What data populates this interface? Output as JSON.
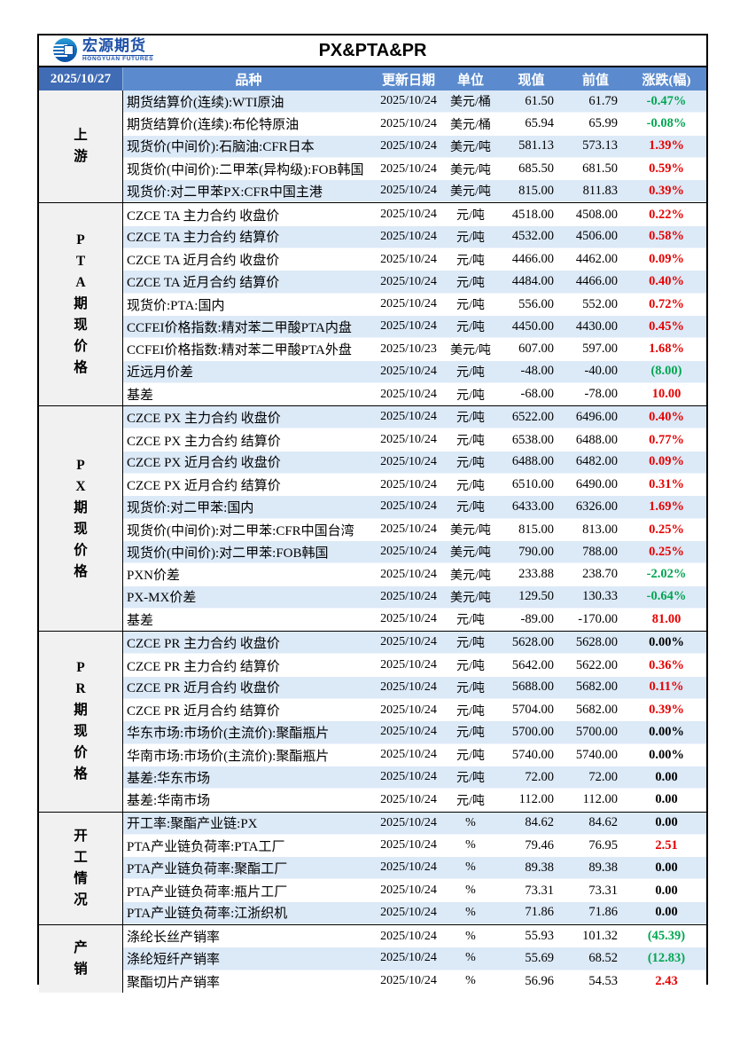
{
  "brand": {
    "name_cn": "宏源期货",
    "name_en": "HONGYUAN FUTURES"
  },
  "report": {
    "title": "PX&PTA&PR",
    "sheet_date": "2025/10/27"
  },
  "colors": {
    "up": "#e60000",
    "down": "#00a651",
    "flat": "#000000",
    "header_bg": "#5b8bce",
    "date_cell_bg": "#3f6cb5",
    "row_alt_blue": "#dce9f7",
    "section_cell_bg": "#f1f1f1",
    "brand_blue": "#1c50a8"
  },
  "table": {
    "columns": [
      "品种",
      "更新日期",
      "单位",
      "现值",
      "前值",
      "涨跌(幅)"
    ],
    "sections": [
      {
        "id": "upstream",
        "label": "上游",
        "label_chars": [
          "上",
          "游"
        ],
        "rows": [
          {
            "name": "期货结算价(连续):WTI原油",
            "date": "2025/10/24",
            "unit": "美元/桶",
            "now": "61.50",
            "prev": "61.79",
            "chg": "-0.47%",
            "trend": "down"
          },
          {
            "name": "期货结算价(连续):布伦特原油",
            "date": "2025/10/24",
            "unit": "美元/桶",
            "now": "65.94",
            "prev": "65.99",
            "chg": "-0.08%",
            "trend": "down"
          },
          {
            "name": "现货价(中间价):石脑油:CFR日本",
            "date": "2025/10/24",
            "unit": "美元/吨",
            "now": "581.13",
            "prev": "573.13",
            "chg": "1.39%",
            "trend": "up"
          },
          {
            "name": "现货价(中间价):二甲苯(异构级):FOB韩国",
            "date": "2025/10/24",
            "unit": "美元/吨",
            "now": "685.50",
            "prev": "681.50",
            "chg": "0.59%",
            "trend": "up"
          },
          {
            "name": "现货价:对二甲苯PX:CFR中国主港",
            "date": "2025/10/24",
            "unit": "美元/吨",
            "now": "815.00",
            "prev": "811.83",
            "chg": "0.39%",
            "trend": "up"
          }
        ]
      },
      {
        "id": "pta-prices",
        "label": "PTA期现价格",
        "label_chars": [
          "P",
          "T",
          "A",
          "期",
          "现",
          "价",
          "格"
        ],
        "rows": [
          {
            "name": "CZCE TA 主力合约 收盘价",
            "date": "2025/10/24",
            "unit": "元/吨",
            "now": "4518.00",
            "prev": "4508.00",
            "chg": "0.22%",
            "trend": "up"
          },
          {
            "name": "CZCE TA 主力合约 结算价",
            "date": "2025/10/24",
            "unit": "元/吨",
            "now": "4532.00",
            "prev": "4506.00",
            "chg": "0.58%",
            "trend": "up"
          },
          {
            "name": "CZCE TA 近月合约 收盘价",
            "date": "2025/10/24",
            "unit": "元/吨",
            "now": "4466.00",
            "prev": "4462.00",
            "chg": "0.09%",
            "trend": "up"
          },
          {
            "name": "CZCE TA 近月合约 结算价",
            "date": "2025/10/24",
            "unit": "元/吨",
            "now": "4484.00",
            "prev": "4466.00",
            "chg": "0.40%",
            "trend": "up"
          },
          {
            "name": "现货价:PTA:国内",
            "date": "2025/10/24",
            "unit": "元/吨",
            "now": "556.00",
            "prev": "552.00",
            "chg": "0.72%",
            "trend": "up"
          },
          {
            "name": "CCFEI价格指数:精对苯二甲酸PTA内盘",
            "date": "2025/10/24",
            "unit": "元/吨",
            "now": "4450.00",
            "prev": "4430.00",
            "chg": "0.45%",
            "trend": "up"
          },
          {
            "name": "CCFEI价格指数:精对苯二甲酸PTA外盘",
            "date": "2025/10/23",
            "unit": "美元/吨",
            "now": "607.00",
            "prev": "597.00",
            "chg": "1.68%",
            "trend": "up"
          },
          {
            "name": "近远月价差",
            "date": "2025/10/24",
            "unit": "元/吨",
            "now": "-48.00",
            "prev": "-40.00",
            "chg": "(8.00)",
            "trend": "down"
          },
          {
            "name": "基差",
            "date": "2025/10/24",
            "unit": "元/吨",
            "now": "-68.00",
            "prev": "-78.00",
            "chg": "10.00",
            "trend": "up"
          }
        ]
      },
      {
        "id": "px-prices",
        "label": "PX期现价格",
        "label_chars": [
          "P",
          "X",
          "期",
          "现",
          "价",
          "格"
        ],
        "rows": [
          {
            "name": "CZCE PX 主力合约 收盘价",
            "date": "2025/10/24",
            "unit": "元/吨",
            "now": "6522.00",
            "prev": "6496.00",
            "chg": "0.40%",
            "trend": "up"
          },
          {
            "name": "CZCE PX 主力合约 结算价",
            "date": "2025/10/24",
            "unit": "元/吨",
            "now": "6538.00",
            "prev": "6488.00",
            "chg": "0.77%",
            "trend": "up"
          },
          {
            "name": "CZCE PX 近月合约 收盘价",
            "date": "2025/10/24",
            "unit": "元/吨",
            "now": "6488.00",
            "prev": "6482.00",
            "chg": "0.09%",
            "trend": "up"
          },
          {
            "name": "CZCE PX 近月合约 结算价",
            "date": "2025/10/24",
            "unit": "元/吨",
            "now": "6510.00",
            "prev": "6490.00",
            "chg": "0.31%",
            "trend": "up"
          },
          {
            "name": "现货价:对二甲苯:国内",
            "date": "2025/10/24",
            "unit": "元/吨",
            "now": "6433.00",
            "prev": "6326.00",
            "chg": "1.69%",
            "trend": "up"
          },
          {
            "name": "现货价(中间价):对二甲苯:CFR中国台湾",
            "date": "2025/10/24",
            "unit": "美元/吨",
            "now": "815.00",
            "prev": "813.00",
            "chg": "0.25%",
            "trend": "up"
          },
          {
            "name": "现货价(中间价):对二甲苯:FOB韩国",
            "date": "2025/10/24",
            "unit": "美元/吨",
            "now": "790.00",
            "prev": "788.00",
            "chg": "0.25%",
            "trend": "up"
          },
          {
            "name": "PXN价差",
            "date": "2025/10/24",
            "unit": "美元/吨",
            "now": "233.88",
            "prev": "238.70",
            "chg": "-2.02%",
            "trend": "down"
          },
          {
            "name": "PX-MX价差",
            "date": "2025/10/24",
            "unit": "美元/吨",
            "now": "129.50",
            "prev": "130.33",
            "chg": "-0.64%",
            "trend": "down"
          },
          {
            "name": "基差",
            "date": "2025/10/24",
            "unit": "元/吨",
            "now": "-89.00",
            "prev": "-170.00",
            "chg": "81.00",
            "trend": "up"
          }
        ]
      },
      {
        "id": "pr-prices",
        "label": "PR期现价格",
        "label_chars": [
          "P",
          "R",
          "期",
          "现",
          "价",
          "格"
        ],
        "rows": [
          {
            "name": "CZCE PR 主力合约 收盘价",
            "date": "2025/10/24",
            "unit": "元/吨",
            "now": "5628.00",
            "prev": "5628.00",
            "chg": "0.00%",
            "trend": "flat"
          },
          {
            "name": "CZCE PR 主力合约 结算价",
            "date": "2025/10/24",
            "unit": "元/吨",
            "now": "5642.00",
            "prev": "5622.00",
            "chg": "0.36%",
            "trend": "up"
          },
          {
            "name": "CZCE PR 近月合约 收盘价",
            "date": "2025/10/24",
            "unit": "元/吨",
            "now": "5688.00",
            "prev": "5682.00",
            "chg": "0.11%",
            "trend": "up"
          },
          {
            "name": "CZCE PR 近月合约 结算价",
            "date": "2025/10/24",
            "unit": "元/吨",
            "now": "5704.00",
            "prev": "5682.00",
            "chg": "0.39%",
            "trend": "up"
          },
          {
            "name": "华东市场:市场价(主流价):聚酯瓶片",
            "date": "2025/10/24",
            "unit": "元/吨",
            "now": "5700.00",
            "prev": "5700.00",
            "chg": "0.00%",
            "trend": "flat"
          },
          {
            "name": "华南市场:市场价(主流价):聚酯瓶片",
            "date": "2025/10/24",
            "unit": "元/吨",
            "now": "5740.00",
            "prev": "5740.00",
            "chg": "0.00%",
            "trend": "flat"
          },
          {
            "name": "基差:华东市场",
            "date": "2025/10/24",
            "unit": "元/吨",
            "now": "72.00",
            "prev": "72.00",
            "chg": "0.00",
            "trend": "flat"
          },
          {
            "name": "基差:华南市场",
            "date": "2025/10/24",
            "unit": "元/吨",
            "now": "112.00",
            "prev": "112.00",
            "chg": "0.00",
            "trend": "flat"
          }
        ]
      },
      {
        "id": "operating",
        "label": "开工情况",
        "label_chars": [
          "开",
          "工",
          "情",
          "况"
        ],
        "rows": [
          {
            "name": "开工率:聚酯产业链:PX",
            "date": "2025/10/24",
            "unit": "%",
            "now": "84.62",
            "prev": "84.62",
            "chg": "0.00",
            "trend": "flat"
          },
          {
            "name": "PTA产业链负荷率:PTA工厂",
            "date": "2025/10/24",
            "unit": "%",
            "now": "79.46",
            "prev": "76.95",
            "chg": "2.51",
            "trend": "up"
          },
          {
            "name": "PTA产业链负荷率:聚酯工厂",
            "date": "2025/10/24",
            "unit": "%",
            "now": "89.38",
            "prev": "89.38",
            "chg": "0.00",
            "trend": "flat"
          },
          {
            "name": "PTA产业链负荷率:瓶片工厂",
            "date": "2025/10/24",
            "unit": "%",
            "now": "73.31",
            "prev": "73.31",
            "chg": "0.00",
            "trend": "flat"
          },
          {
            "name": "PTA产业链负荷率:江浙织机",
            "date": "2025/10/24",
            "unit": "%",
            "now": "71.86",
            "prev": "71.86",
            "chg": "0.00",
            "trend": "flat"
          }
        ]
      },
      {
        "id": "sales",
        "label": "产销",
        "label_chars": [
          "产",
          "销"
        ],
        "rows": [
          {
            "name": "涤纶长丝产销率",
            "date": "2025/10/24",
            "unit": "%",
            "now": "55.93",
            "prev": "101.32",
            "chg": "(45.39)",
            "trend": "down"
          },
          {
            "name": "涤纶短纤产销率",
            "date": "2025/10/24",
            "unit": "%",
            "now": "55.69",
            "prev": "68.52",
            "chg": "(12.83)",
            "trend": "down"
          },
          {
            "name": "聚酯切片产销率",
            "date": "2025/10/24",
            "unit": "%",
            "now": "56.96",
            "prev": "54.53",
            "chg": "2.43",
            "trend": "up"
          }
        ]
      }
    ]
  }
}
